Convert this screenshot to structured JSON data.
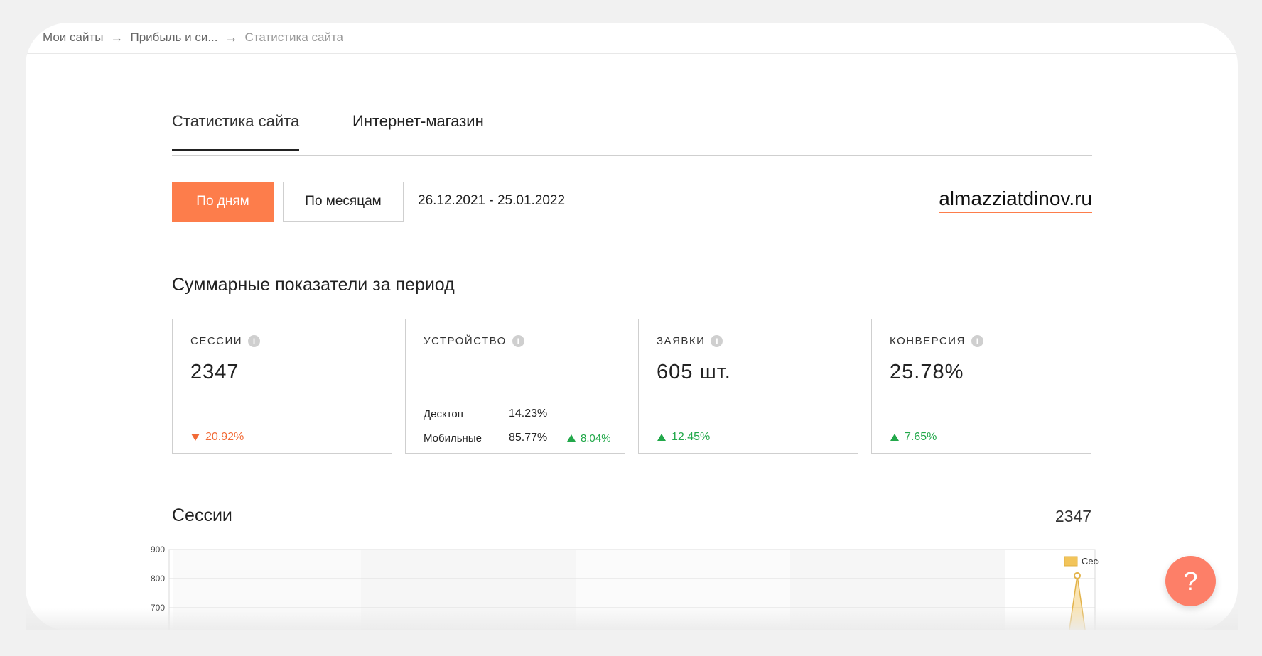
{
  "breadcrumb": {
    "items": [
      "Мои сайты",
      "Прибыль и си...",
      "Статистика сайта"
    ],
    "separator": "→"
  },
  "tabs": [
    {
      "label": "Статистика сайта",
      "active": true
    },
    {
      "label": "Интернет-магазин",
      "active": false
    }
  ],
  "period": {
    "by_days_label": "По дням",
    "by_months_label": "По месяцам",
    "date_range": "26.12.2021 - 25.01.2022"
  },
  "site": "almazziatdinov.ru",
  "summary": {
    "title": "Суммарные показатели за период",
    "info_icon": "i",
    "cards": {
      "sessions": {
        "label": "СЕССИИ",
        "value": "2347",
        "delta": "20.92%",
        "direction": "down"
      },
      "device": {
        "label": "УСТРОЙСТВО",
        "desktop": {
          "name": "Десктоп",
          "value": "14.23%"
        },
        "mobile": {
          "name": "Мобильные",
          "value": "85.77%",
          "delta": "8.04%",
          "direction": "up"
        }
      },
      "requests": {
        "label": "ЗАЯВКИ",
        "value": "605 шт.",
        "delta": "12.45%",
        "direction": "up"
      },
      "conversion": {
        "label": "КОНВЕРСИЯ",
        "value": "25.78%",
        "delta": "7.65%",
        "direction": "up"
      }
    }
  },
  "sessions_chart": {
    "title": "Сессии",
    "total": "2347"
  },
  "colors": {
    "accent": "#fd7d4b",
    "up": "#22a84a",
    "down": "#f26a36",
    "series": "#f2c45a"
  },
  "help_label": "?",
  "chart_data": {
    "type": "area",
    "series": [
      {
        "name": "Сессии",
        "values": [
          810
        ]
      }
    ],
    "legend": "top-right",
    "ylim": [
      600,
      900
    ],
    "yticks": [
      "900",
      "800",
      "700",
      "600"
    ],
    "grid": true
  }
}
